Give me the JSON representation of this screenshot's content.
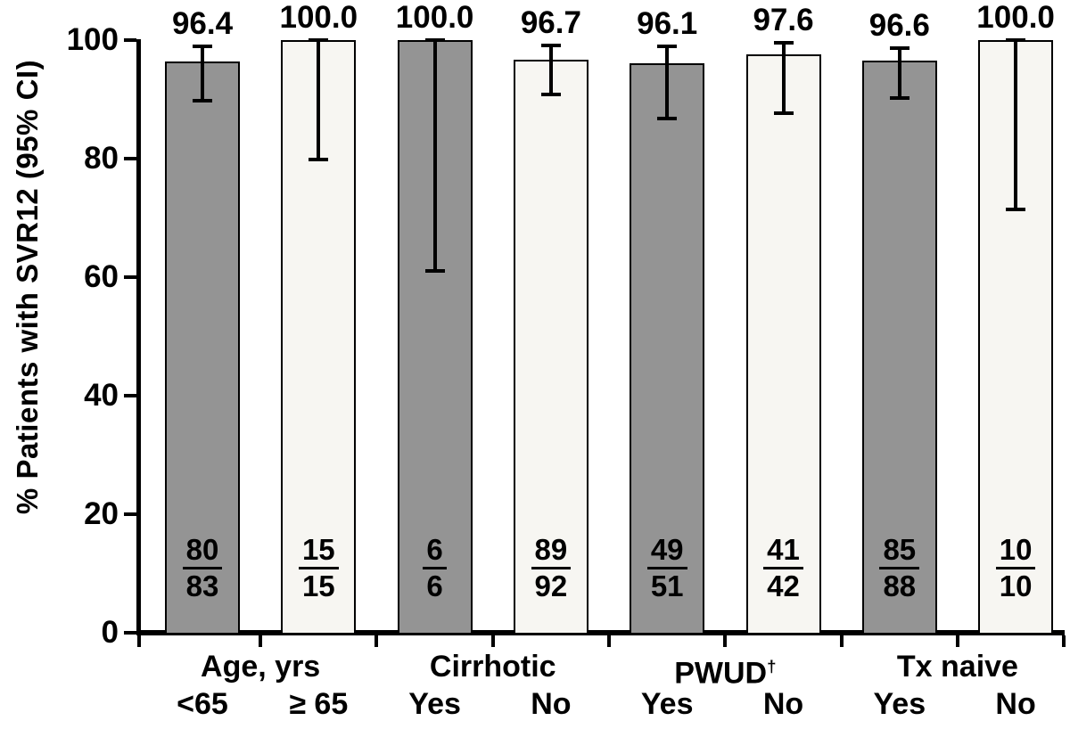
{
  "chart_data": {
    "type": "bar",
    "title": "",
    "ylabel": "% Patients with SVR12 (95% CI)",
    "xlabel": "",
    "ylim": [
      0,
      100
    ],
    "yticks": [
      0,
      20,
      40,
      60,
      80,
      100
    ],
    "grid": false,
    "legend": "none",
    "error_bars": "95% CI",
    "bar_colors": {
      "dark": "#949494",
      "light": "#f7f6f2"
    },
    "axis_color": "#000000",
    "groups": [
      {
        "label": "Age, yrs",
        "bars": [
          {
            "sublabel": "<65",
            "value": 96.4,
            "value_label": "96.4",
            "ci_low": 89.8,
            "ci_high": 99.0,
            "numerator": "80",
            "denominator": "83",
            "fill": "dark"
          },
          {
            "sublabel": "≥ 65",
            "value": 100.0,
            "value_label": "100.0",
            "ci_low": 79.8,
            "ci_high": 100.0,
            "numerator": "15",
            "denominator": "15",
            "fill": "light"
          }
        ]
      },
      {
        "label": "Cirrhotic",
        "bars": [
          {
            "sublabel": "Yes",
            "value": 100.0,
            "value_label": "100.0",
            "ci_low": 61.0,
            "ci_high": 100.0,
            "numerator": "6",
            "denominator": "6",
            "fill": "dark"
          },
          {
            "sublabel": "No",
            "value": 96.7,
            "value_label": "96.7",
            "ci_low": 90.8,
            "ci_high": 99.1,
            "numerator": "89",
            "denominator": "92",
            "fill": "light"
          }
        ]
      },
      {
        "label": "PWUD",
        "label_sup": "†",
        "bars": [
          {
            "sublabel": "Yes",
            "value": 96.1,
            "value_label": "96.1",
            "ci_low": 86.8,
            "ci_high": 98.9,
            "numerator": "49",
            "denominator": "51",
            "fill": "dark"
          },
          {
            "sublabel": "No",
            "value": 97.6,
            "value_label": "97.6",
            "ci_low": 87.6,
            "ci_high": 99.6,
            "numerator": "41",
            "denominator": "42",
            "fill": "light"
          }
        ]
      },
      {
        "label": "Tx naive",
        "bars": [
          {
            "sublabel": "Yes",
            "value": 96.6,
            "value_label": "96.6",
            "ci_low": 90.2,
            "ci_high": 98.7,
            "numerator": "85",
            "denominator": "88",
            "fill": "dark"
          },
          {
            "sublabel": "No",
            "value": 100.0,
            "value_label": "100.0",
            "ci_low": 71.5,
            "ci_high": 100.0,
            "numerator": "10",
            "denominator": "10",
            "fill": "light"
          }
        ]
      }
    ]
  }
}
